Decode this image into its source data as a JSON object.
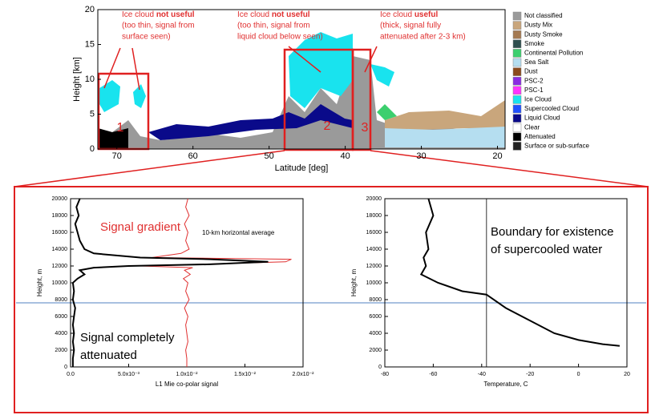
{
  "chart_data": [
    {
      "type": "curtain",
      "xlabel": "Latitude [deg]",
      "ylabel": "Height [km]",
      "xlim": [
        72.5,
        19
      ],
      "ylim": [
        0,
        20
      ],
      "xticks": [
        70,
        60,
        50,
        40,
        30,
        20
      ],
      "yticks": [
        0,
        5,
        10,
        15,
        20
      ],
      "legend": [
        {
          "name": "Not classified",
          "color": "#9a9a9a"
        },
        {
          "name": "Dusty Mix",
          "color": "#c9a67c"
        },
        {
          "name": "Dusty Smoke",
          "color": "#a57a52"
        },
        {
          "name": "Smoke",
          "color": "#2f4f4f"
        },
        {
          "name": "Continental Pollution",
          "color": "#3ccf6e"
        },
        {
          "name": "Sea Salt",
          "color": "#b5def0"
        },
        {
          "name": "Dust",
          "color": "#8b4a1c"
        },
        {
          "name": "PSC-2",
          "color": "#8a2be2"
        },
        {
          "name": "PSC-1",
          "color": "#ff33ff"
        },
        {
          "name": "Ice Cloud",
          "color": "#19e3ee"
        },
        {
          "name": "Supercooled Cloud",
          "color": "#2050ff"
        },
        {
          "name": "Liquid Cloud",
          "color": "#0a0a8a"
        },
        {
          "name": "Clear",
          "color": "#ffffff"
        },
        {
          "name": "Attenuated",
          "color": "#000000"
        },
        {
          "name": "Surface or sub-surface",
          "color": "#222222"
        }
      ],
      "annotations": [
        {
          "prefix": "Ice cloud ",
          "emphasis": "not useful",
          "lines": [
            "(too thin, signal from",
            "surface seen)"
          ]
        },
        {
          "prefix": "Ice cloud ",
          "emphasis": "not useful",
          "lines": [
            "(too thin, signal from",
            "liquid cloud below seen)"
          ]
        },
        {
          "prefix": "Ice cloud ",
          "emphasis": "useful",
          "lines": [
            "(thick, signal fully",
            "attenuated after 2-3 km)"
          ]
        }
      ],
      "regions": [
        "1",
        "2",
        "3"
      ]
    },
    {
      "type": "profile",
      "xlabel": "L1 Mie co-polar signal",
      "ylabel": "Height, m",
      "xlim": [
        0,
        0.02
      ],
      "ylim": [
        0,
        20000
      ],
      "xticks": [
        {
          "value": 0,
          "label": "0.0"
        },
        {
          "value": 0.005,
          "label": "5.0x10⁻³"
        },
        {
          "value": 0.01,
          "label": "1.0x10⁻²"
        },
        {
          "value": 0.015,
          "label": "1.5x10⁻²"
        },
        {
          "value": 0.02,
          "label": "2.0x10⁻²"
        }
      ],
      "yticks": [
        0,
        2000,
        4000,
        6000,
        8000,
        10000,
        12000,
        14000,
        16000,
        18000,
        20000
      ],
      "series": [
        {
          "color": "#e03030",
          "x": [
            0.0101,
            0.0099,
            0.0102,
            0.0098,
            0.0101,
            0.0099,
            0.0102,
            0.0095,
            0.007,
            0.019,
            0.0185,
            0.011,
            0.006,
            0.0105,
            0.0098,
            0.0103,
            0.0097,
            0.0101,
            0.0099,
            0.0102,
            0.0098,
            0.0101,
            0.0099,
            0.01,
            0.0101,
            0.0099,
            0.01,
            0.01
          ],
          "y": [
            20000,
            19000,
            18000,
            17000,
            16000,
            15000,
            14000,
            13500,
            13000,
            12800,
            12500,
            12200,
            12000,
            11800,
            11500,
            11000,
            10500,
            10000,
            9000,
            8000,
            7000,
            6000,
            5000,
            4000,
            3000,
            2000,
            1000,
            0
          ]
        },
        {
          "color": "#000000",
          "x": [
            0.0008,
            0.0005,
            0.0007,
            0.0004,
            0.0006,
            0.0008,
            0.0012,
            0.002,
            0.006,
            0.012,
            0.017,
            0.012,
            0.005,
            0.002,
            0.0008,
            0.0012,
            0.0006,
            0.0002,
            0.0003,
            0.0002,
            0.0004,
            0.0003,
            0.0002,
            0.0003,
            0.0002,
            0.0003,
            0.0002,
            0.0002
          ],
          "y": [
            20000,
            19000,
            18000,
            17000,
            16000,
            15000,
            14000,
            13500,
            13000,
            12800,
            12500,
            12200,
            12000,
            11800,
            11500,
            11000,
            10500,
            10000,
            9000,
            8000,
            7000,
            6000,
            5000,
            4000,
            3000,
            2000,
            1000,
            0
          ]
        }
      ],
      "annotations": [
        {
          "lines": [
            "Signal gradient"
          ]
        },
        {
          "lines": [
            "10-km horizontal average"
          ]
        },
        {
          "lines": [
            "Signal completely",
            "attenuated"
          ]
        }
      ]
    },
    {
      "type": "profile",
      "xlabel": "Temperature, C",
      "ylabel": "Height, m",
      "xlim": [
        -80,
        20
      ],
      "ylim": [
        0,
        20000
      ],
      "xticks": [
        -80,
        -60,
        -40,
        -20,
        0,
        20
      ],
      "yticks": [
        0,
        2000,
        4000,
        6000,
        8000,
        10000,
        12000,
        14000,
        16000,
        18000,
        20000
      ],
      "series": [
        {
          "color": "#000000",
          "x": [
            -62,
            -60,
            -63,
            -62,
            -64,
            -63,
            -65,
            -58,
            -48,
            -38,
            -30,
            -20,
            -10,
            0,
            10,
            17
          ],
          "y": [
            20000,
            18000,
            16000,
            14000,
            13000,
            12000,
            11000,
            10000,
            9000,
            8600,
            7000,
            5500,
            4000,
            3200,
            2700,
            2500
          ]
        }
      ],
      "vline": -38,
      "annotations": [
        {
          "lines": [
            "Boundary for existence",
            "of supercooled water"
          ]
        }
      ]
    }
  ]
}
